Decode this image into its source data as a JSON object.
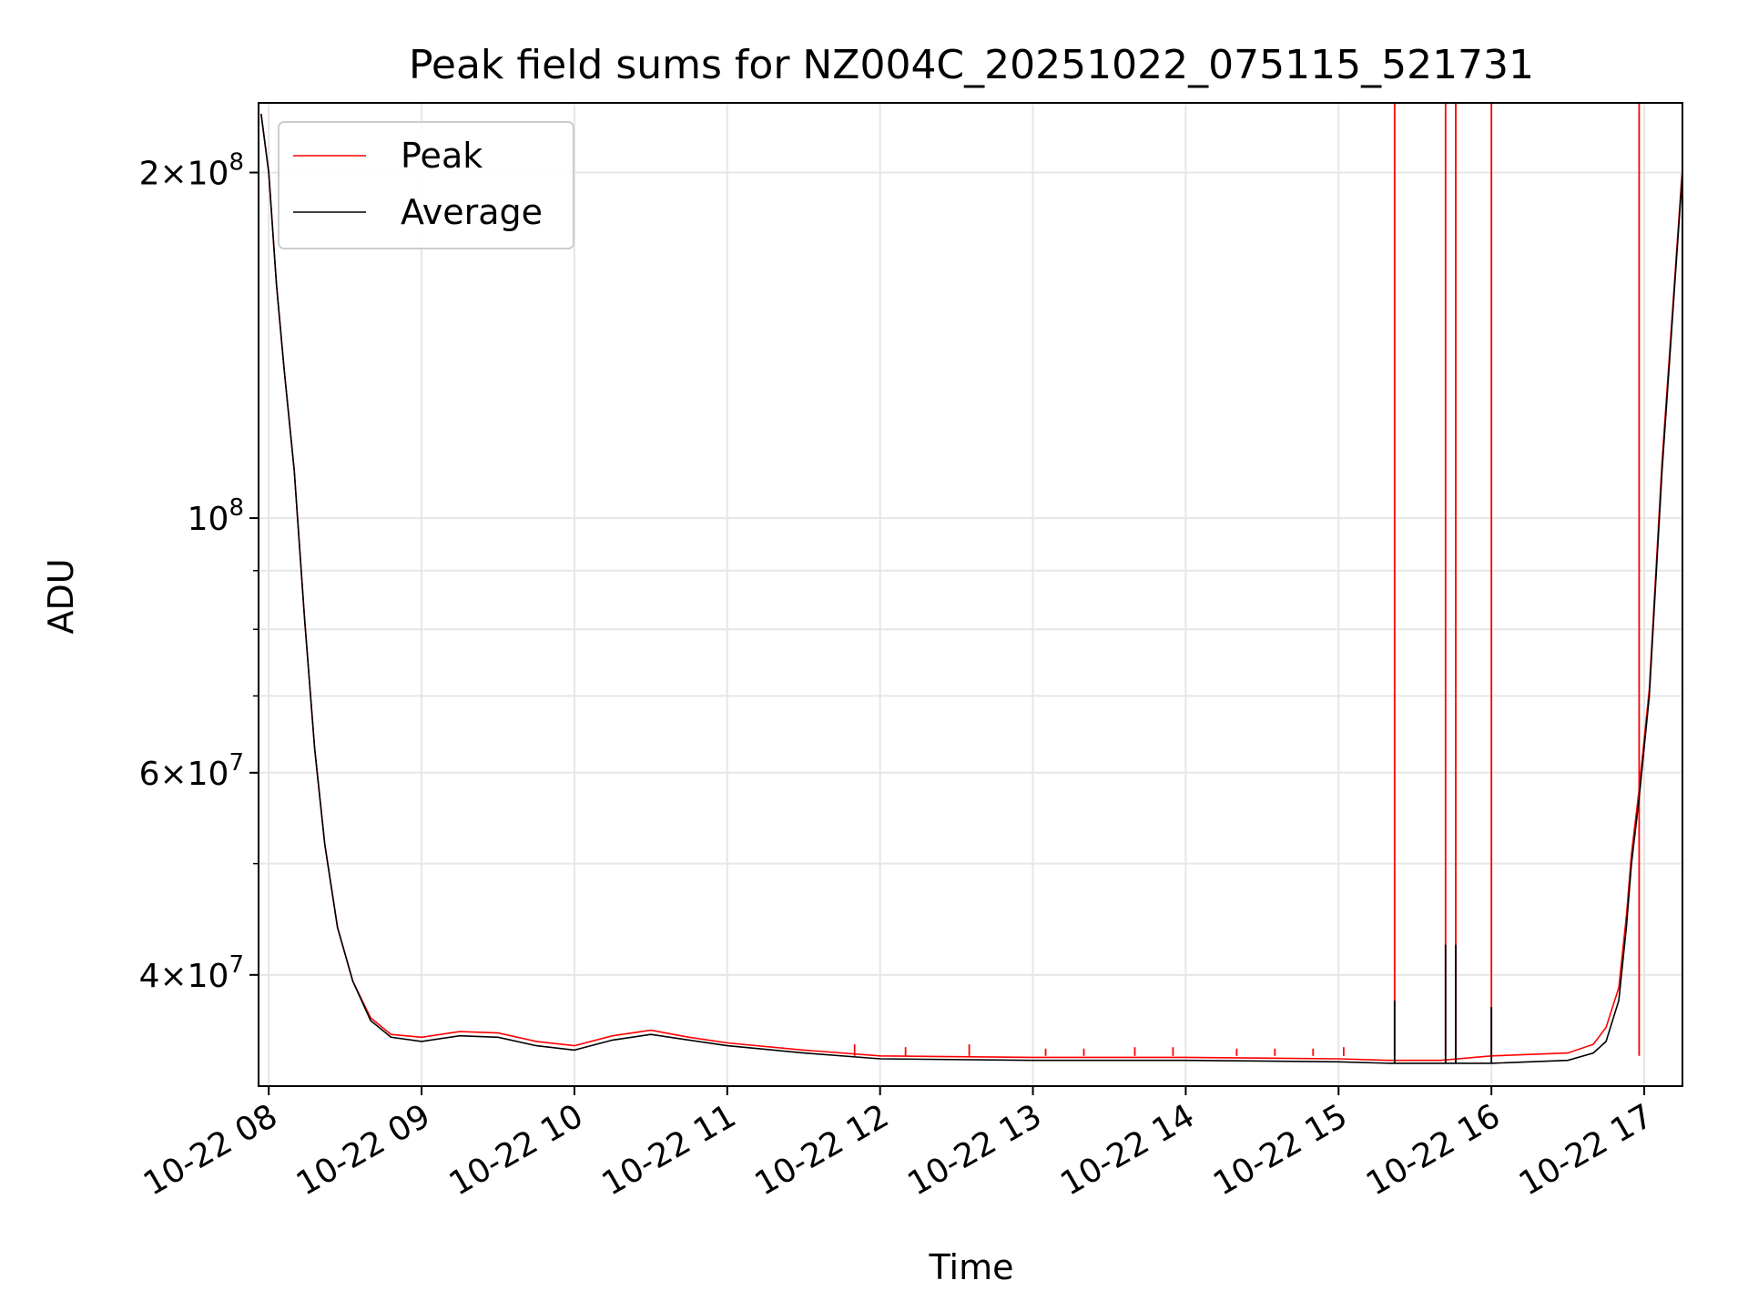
{
  "chart_data": {
    "type": "line",
    "title": "Peak field sums for NZ004C_20251022_075115_521731",
    "xlabel": "Time",
    "ylabel": "ADU",
    "yscale": "log",
    "grid": true,
    "legend_position": "top-left",
    "xlim": [
      "2025-10-22T07:56",
      "2025-10-22T17:15"
    ],
    "ylim": [
      32000000,
      230000000
    ],
    "x_ticks": [
      "10-22 08",
      "10-22 09",
      "10-22 10",
      "10-22 11",
      "10-22 12",
      "10-22 13",
      "10-22 14",
      "10-22 15",
      "10-22 16",
      "10-22 17"
    ],
    "y_ticks": [
      {
        "value": 200000000,
        "base": "2",
        "exp": "8",
        "times": true
      },
      {
        "value": 100000000,
        "base": "10",
        "exp": "8",
        "times": false
      },
      {
        "value": 60000000,
        "base": "6",
        "exp": "7",
        "times": true
      },
      {
        "value": 40000000,
        "base": "4",
        "exp": "7",
        "times": true
      }
    ],
    "series": [
      {
        "name": "Average",
        "color": "#000000",
        "points": [
          [
            "2025-10-22T07:57",
            225000000
          ],
          [
            "2025-10-22T08:00",
            200000000
          ],
          [
            "2025-10-22T08:03",
            160000000
          ],
          [
            "2025-10-22T08:06",
            135000000
          ],
          [
            "2025-10-22T08:10",
            110000000
          ],
          [
            "2025-10-22T08:14",
            82000000
          ],
          [
            "2025-10-22T08:18",
            63000000
          ],
          [
            "2025-10-22T08:22",
            52000000
          ],
          [
            "2025-10-22T08:27",
            44000000
          ],
          [
            "2025-10-22T08:33",
            39500000
          ],
          [
            "2025-10-22T08:40",
            36500000
          ],
          [
            "2025-10-22T08:48",
            35300000
          ],
          [
            "2025-10-22T09:00",
            35000000
          ],
          [
            "2025-10-22T09:15",
            35400000
          ],
          [
            "2025-10-22T09:30",
            35300000
          ],
          [
            "2025-10-22T09:45",
            34700000
          ],
          [
            "2025-10-22T10:00",
            34400000
          ],
          [
            "2025-10-22T10:15",
            35100000
          ],
          [
            "2025-10-22T10:30",
            35500000
          ],
          [
            "2025-10-22T10:45",
            35100000
          ],
          [
            "2025-10-22T11:00",
            34700000
          ],
          [
            "2025-10-22T11:30",
            34200000
          ],
          [
            "2025-10-22T12:00",
            33800000
          ],
          [
            "2025-10-22T13:00",
            33700000
          ],
          [
            "2025-10-22T14:00",
            33700000
          ],
          [
            "2025-10-22T15:00",
            33600000
          ],
          [
            "2025-10-22T15:20",
            33500000
          ],
          [
            "2025-10-22T15:40",
            33500000
          ],
          [
            "2025-10-22T16:00",
            33500000
          ],
          [
            "2025-10-22T16:30",
            33700000
          ],
          [
            "2025-10-22T16:40",
            34200000
          ],
          [
            "2025-10-22T16:45",
            35000000
          ],
          [
            "2025-10-22T16:50",
            38000000
          ],
          [
            "2025-10-22T16:53",
            44000000
          ],
          [
            "2025-10-22T16:55",
            50000000
          ],
          [
            "2025-10-22T16:58",
            57000000
          ],
          [
            "2025-10-22T17:02",
            70000000
          ],
          [
            "2025-10-22T17:07",
            110000000
          ],
          [
            "2025-10-22T17:12",
            160000000
          ],
          [
            "2025-10-22T17:15",
            200000000
          ]
        ]
      },
      {
        "name": "Peak",
        "color": "#ff0000",
        "points": [
          [
            "2025-10-22T07:57",
            225000000
          ],
          [
            "2025-10-22T08:00",
            200000000
          ],
          [
            "2025-10-22T08:03",
            160000000
          ],
          [
            "2025-10-22T08:06",
            135000000
          ],
          [
            "2025-10-22T08:10",
            110000000
          ],
          [
            "2025-10-22T08:14",
            82000000
          ],
          [
            "2025-10-22T08:18",
            63000000
          ],
          [
            "2025-10-22T08:22",
            52000000
          ],
          [
            "2025-10-22T08:27",
            44000000
          ],
          [
            "2025-10-22T08:33",
            39500000
          ],
          [
            "2025-10-22T08:40",
            36700000
          ],
          [
            "2025-10-22T08:48",
            35500000
          ],
          [
            "2025-10-22T09:00",
            35300000
          ],
          [
            "2025-10-22T09:15",
            35700000
          ],
          [
            "2025-10-22T09:30",
            35600000
          ],
          [
            "2025-10-22T09:45",
            35000000
          ],
          [
            "2025-10-22T10:00",
            34700000
          ],
          [
            "2025-10-22T10:15",
            35400000
          ],
          [
            "2025-10-22T10:30",
            35800000
          ],
          [
            "2025-10-22T10:45",
            35300000
          ],
          [
            "2025-10-22T11:00",
            34900000
          ],
          [
            "2025-10-22T11:30",
            34400000
          ],
          [
            "2025-10-22T12:00",
            34000000
          ],
          [
            "2025-10-22T13:00",
            33900000
          ],
          [
            "2025-10-22T14:00",
            33900000
          ],
          [
            "2025-10-22T15:00",
            33800000
          ],
          [
            "2025-10-22T15:20",
            33700000
          ],
          [
            "2025-10-22T15:40",
            33700000
          ],
          [
            "2025-10-22T16:00",
            34000000
          ],
          [
            "2025-10-22T16:30",
            34200000
          ],
          [
            "2025-10-22T16:40",
            34800000
          ],
          [
            "2025-10-22T16:45",
            36000000
          ],
          [
            "2025-10-22T16:50",
            39000000
          ],
          [
            "2025-10-22T16:53",
            45000000
          ],
          [
            "2025-10-22T16:55",
            51000000
          ],
          [
            "2025-10-22T16:58",
            58000000
          ],
          [
            "2025-10-22T17:02",
            71000000
          ],
          [
            "2025-10-22T17:07",
            112000000
          ],
          [
            "2025-10-22T17:12",
            162000000
          ],
          [
            "2025-10-22T17:15",
            202000000
          ]
        ],
        "spikes": [
          {
            "time": "2025-10-22T11:50",
            "value": 34800000
          },
          {
            "time": "2025-10-22T12:10",
            "value": 34600000
          },
          {
            "time": "2025-10-22T12:35",
            "value": 34800000
          },
          {
            "time": "2025-10-22T13:05",
            "value": 34500000
          },
          {
            "time": "2025-10-22T13:20",
            "value": 34500000
          },
          {
            "time": "2025-10-22T13:40",
            "value": 34600000
          },
          {
            "time": "2025-10-22T13:55",
            "value": 34600000
          },
          {
            "time": "2025-10-22T14:20",
            "value": 34500000
          },
          {
            "time": "2025-10-22T14:35",
            "value": 34500000
          },
          {
            "time": "2025-10-22T14:50",
            "value": 34500000
          },
          {
            "time": "2025-10-22T15:02",
            "value": 34600000
          },
          {
            "time": "2025-10-22T15:22",
            "value": 230000000
          },
          {
            "time": "2025-10-22T15:42",
            "value": 230000000
          },
          {
            "time": "2025-10-22T15:46",
            "value": 230000000
          },
          {
            "time": "2025-10-22T16:00",
            "value": 230000000
          },
          {
            "time": "2025-10-22T16:58",
            "value": 230000000
          }
        ]
      }
    ],
    "average_spikes": [
      {
        "time": "2025-10-22T15:22",
        "value": 38000000
      },
      {
        "time": "2025-10-22T15:42",
        "value": 42500000
      },
      {
        "time": "2025-10-22T15:46",
        "value": 42500000
      },
      {
        "time": "2025-10-22T16:00",
        "value": 37500000
      }
    ]
  }
}
